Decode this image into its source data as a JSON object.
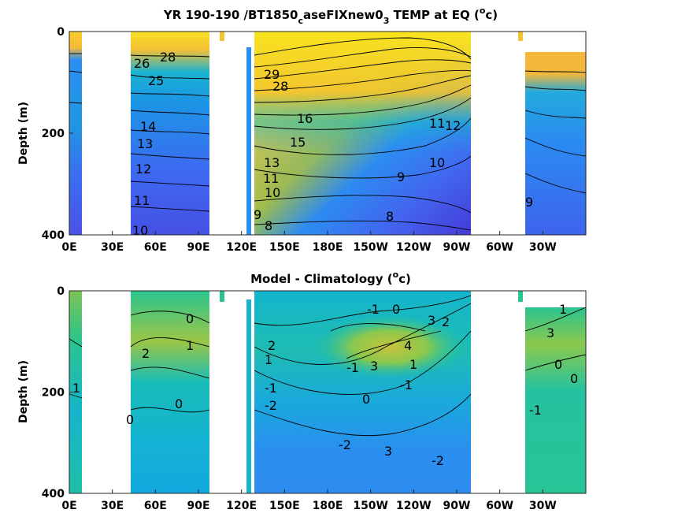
{
  "chart_data": [
    {
      "type": "heatmap",
      "title_prefix": "YR 190-190 /BT1850",
      "title_sub1": "c",
      "title_mid": "aseFIXnew0",
      "title_sub2": "3",
      "title_mid2": " TEMP at EQ (",
      "title_sup": "o",
      "title_suffix": "c)",
      "ylabel": "Depth (m)",
      "x_ticks": [
        "0E",
        "30E",
        "60E",
        "90E",
        "120E",
        "150E",
        "180E",
        "150W",
        "120W",
        "90W",
        "60W",
        "30W"
      ],
      "y_ticks": [
        "0",
        "200",
        "400"
      ],
      "ylim": [
        0,
        400
      ],
      "xlim_lon": [
        0,
        360
      ],
      "contour_labels": [
        "28",
        "29",
        "28",
        "26",
        "25",
        "14",
        "13",
        "12",
        "11",
        "10",
        "13",
        "12",
        "11",
        "11",
        "10",
        "9",
        "9",
        "8",
        "8",
        "10",
        "9",
        "16",
        "15"
      ],
      "colormap": [
        "#3e26a8",
        "#4a5aef",
        "#2c8ef2",
        "#14b5cd",
        "#2bc48f",
        "#8bc84d",
        "#d7ba2f",
        "#f8d228",
        "#f9fb0e"
      ]
    },
    {
      "type": "heatmap",
      "title_prefix": "Model - Climatology (",
      "title_sup": "o",
      "title_suffix": "c)",
      "ylabel": "Depth (m)",
      "x_ticks": [
        "0E",
        "30E",
        "60E",
        "90E",
        "120E",
        "150E",
        "180E",
        "150W",
        "120W",
        "90W",
        "60W",
        "30W"
      ],
      "y_ticks": [
        "0",
        "200",
        "400"
      ],
      "ylim": [
        0,
        400
      ],
      "xlim_lon": [
        0,
        360
      ],
      "contour_labels": [
        "0",
        "1",
        "2",
        "-1",
        "2",
        "1",
        "0",
        "-1",
        "-2",
        "0",
        "-1",
        "3",
        "4",
        "3",
        "2",
        "1",
        "0",
        "-1",
        "0",
        "-2",
        "3",
        "-2",
        "0",
        "1",
        "3",
        "0",
        "-1",
        "1"
      ],
      "colormap": [
        "#3e26a8",
        "#4a5aef",
        "#2c8ef2",
        "#14b5cd",
        "#2bc48f",
        "#8bc84d",
        "#d7ba2f",
        "#f9fb0e"
      ]
    }
  ]
}
